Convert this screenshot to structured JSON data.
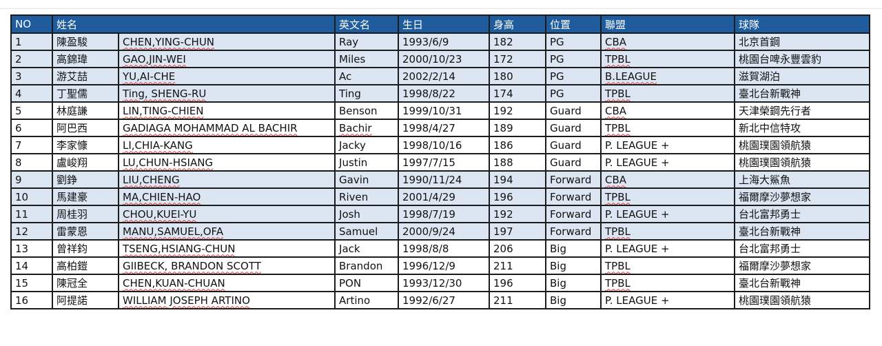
{
  "headers": {
    "no": "NO",
    "name": "姓名",
    "english": "英文名",
    "birthday": "生日",
    "height": "身高",
    "position": "位置",
    "league": "聯盟",
    "team": "球隊"
  },
  "colors": {
    "header_bg": "#1f5c9e",
    "row_highlight": "#dce6f2"
  },
  "rows": [
    {
      "no": "1",
      "cn": "陳盈駿",
      "full": "CHEN,YING-CHUN",
      "en": "Ray",
      "bday": "1993/6/9",
      "h": "182",
      "pos": "PG",
      "league": "CBA",
      "team": "北京首鋼"
    },
    {
      "no": "2",
      "cn": "高錦瑋",
      "full": "GAO,JIN-WEI",
      "en": "Miles",
      "bday": "2000/10/23",
      "h": "172",
      "pos": "PG",
      "league": "TPBL",
      "team": "桃園台啤永豐雲豹"
    },
    {
      "no": "3",
      "cn": "游艾喆",
      "full": "YU,AI-CHE",
      "en": "Ac",
      "bday": "2002/2/14",
      "h": "180",
      "pos": "PG",
      "league": "B.LEAGUE",
      "team": "滋賀湖泊"
    },
    {
      "no": "4",
      "cn": "丁聖儒",
      "full": "Ting, SHENG-RU",
      "en": "Ting",
      "bday": "1998/8/22",
      "h": "174",
      "pos": "PG",
      "league": "TPBL",
      "team": "臺北台新戰神"
    },
    {
      "no": "5",
      "cn": "林庭謙",
      "full": "LIN,TING-CHIEN",
      "en": "Benson",
      "bday": "1999/10/31",
      "h": "192",
      "pos": "Guard",
      "league": "CBA",
      "team": "天津榮鋼先行者"
    },
    {
      "no": "6",
      "cn": "阿巴西",
      "full": "GADIAGA MOHAMMAD AL BACHIR",
      "en": "Bachir",
      "bday": "1998/4/27",
      "h": "189",
      "pos": "Guard",
      "league": "TPBL",
      "team": "新北中信特攻"
    },
    {
      "no": "7",
      "cn": "李家慷",
      "full": "LI,CHIA-KANG",
      "en": "Jacky",
      "bday": "1998/10/16",
      "h": "186",
      "pos": "Guard",
      "league": "P. LEAGUE +",
      "team": "桃園璞園領航猿"
    },
    {
      "no": "8",
      "cn": "盧峻翔",
      "full": "LU,CHUN-HSIANG",
      "en": "Justin",
      "bday": "1997/7/15",
      "h": "188",
      "pos": "Guard",
      "league": "P. LEAGUE +",
      "team": "桃園璞園領航猿"
    },
    {
      "no": "9",
      "cn": "劉錚",
      "full": "LIU,CHENG",
      "en": "Gavin",
      "bday": "1990/11/24",
      "h": "194",
      "pos": "Forward",
      "league": "CBA",
      "team": "上海大鯊魚"
    },
    {
      "no": "10",
      "cn": "馬建豪",
      "full": "MA,CHIEN-HAO",
      "en": "Riven",
      "bday": "2001/4/29",
      "h": "196",
      "pos": "Forward",
      "league": "TPBL",
      "team": "福爾摩沙夢想家"
    },
    {
      "no": "11",
      "cn": "周桂羽",
      "full": "CHOU,KUEI-YU",
      "en": "Josh",
      "bday": "1998/7/19",
      "h": "192",
      "pos": "Forward",
      "league": "P. LEAGUE +",
      "team": "台北富邦勇士"
    },
    {
      "no": "12",
      "cn": "雷蒙恩",
      "full": "MANU,SAMUEL,OFA",
      "en": "Samuel",
      "bday": "2000/9/24",
      "h": "197",
      "pos": "Forward",
      "league": "TPBL",
      "team": "臺北台新戰神"
    },
    {
      "no": "13",
      "cn": "曾祥鈞",
      "full": "TSENG,HSIANG-CHUN",
      "en": "Jack",
      "bday": "1998/8/8",
      "h": "206",
      "pos": "Big",
      "league": "P. LEAGUE +",
      "team": "台北富邦勇士"
    },
    {
      "no": "14",
      "cn": "高柏鎧",
      "full": "GIIBECK, BRANDON SCOTT",
      "en": "Brandon",
      "bday": "1996/12/9",
      "h": "211",
      "pos": "Big",
      "league": "TPBL",
      "team": "福爾摩沙夢想家"
    },
    {
      "no": "15",
      "cn": "陳冠全",
      "full": "CHEN,KUAN-CHUAN",
      "en": "PON",
      "bday": "1993/12/30",
      "h": "196",
      "pos": "Big",
      "league": "TPBL",
      "team": "臺北台新戰神"
    },
    {
      "no": "16",
      "cn": "阿提諾",
      "full": "WILLIAM JOSEPH ARTINO",
      "en": "Artino",
      "bday": "1992/6/27",
      "h": "211",
      "pos": "Big",
      "league": "P. LEAGUE +",
      "team": "桃園璞園領航猿"
    }
  ]
}
